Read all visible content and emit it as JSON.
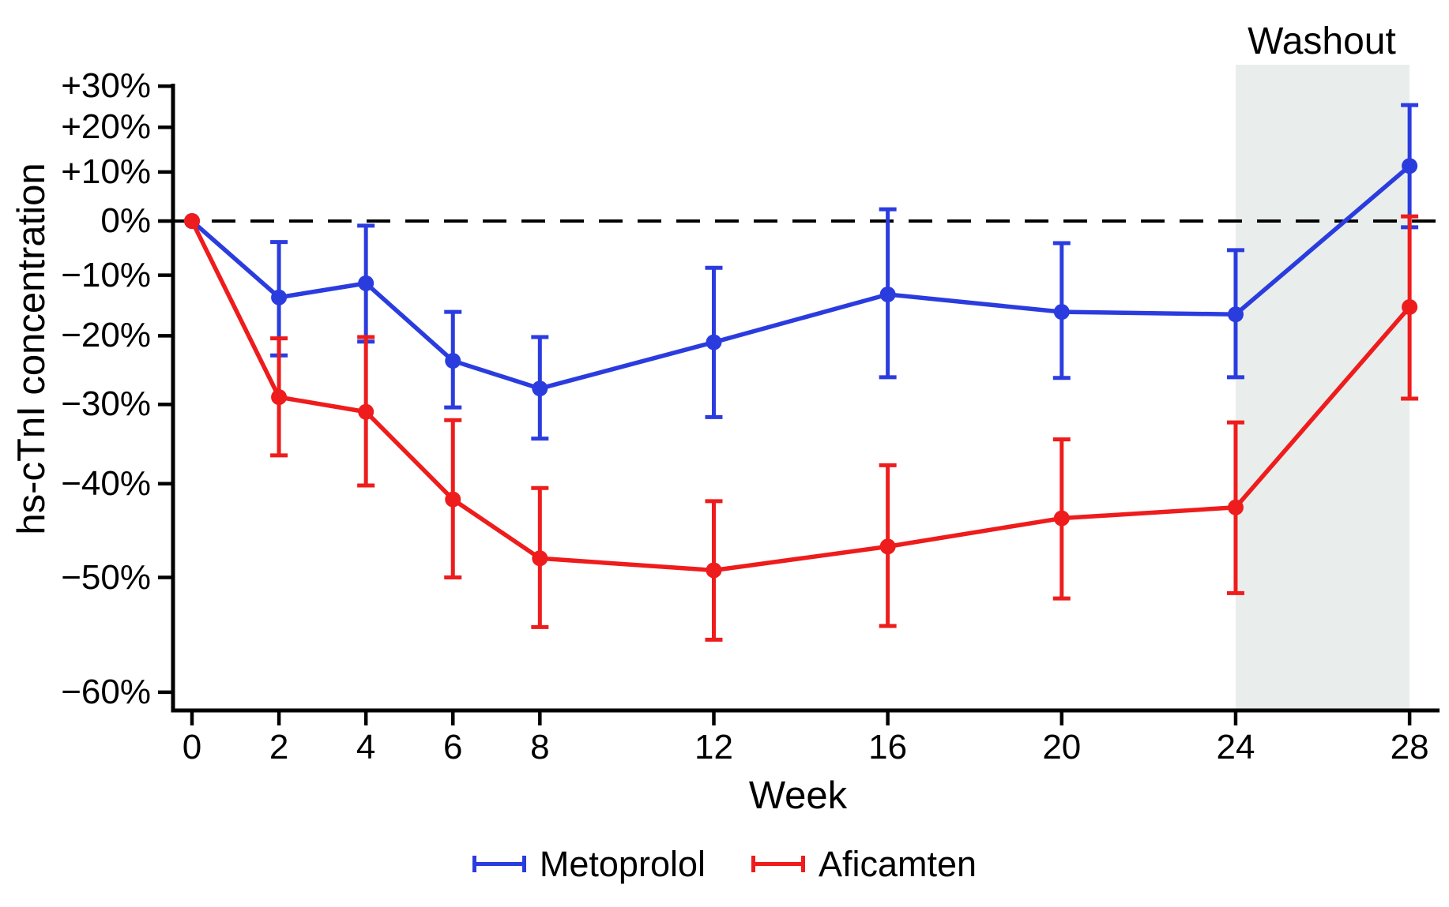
{
  "chart_data": {
    "type": "line",
    "title": "",
    "xlabel": "Week",
    "ylabel": "hs-cTnI concentration",
    "y_scale": "log-ratio: y position proportional to log10(1 + pct/100)",
    "ylim": [
      -60,
      30
    ],
    "xlim": [
      0,
      28
    ],
    "grid": "off",
    "zero_line": {
      "value": 0,
      "style": "dashed",
      "color": "#000000"
    },
    "x_ticks": {
      "values": [
        0,
        2,
        4,
        6,
        8,
        12,
        16,
        20,
        24,
        28
      ],
      "labels": [
        "0",
        "2",
        "4",
        "6",
        "8",
        "12",
        "16",
        "20",
        "24",
        "28"
      ]
    },
    "y_ticks": {
      "values": [
        30,
        20,
        10,
        0,
        -10,
        -20,
        -30,
        -40,
        -50,
        -60
      ],
      "labels": [
        "+30%",
        "+20%",
        "+10%",
        "0%",
        "−10%",
        "−20%",
        "−30%",
        "−40%",
        "−50%",
        "−60%"
      ]
    },
    "washout": {
      "label": "Washout",
      "x_start": 24,
      "x_end": 28,
      "fill": "#e9eeec"
    },
    "weeks": [
      0,
      2,
      4,
      6,
      8,
      12,
      16,
      20,
      24,
      28
    ],
    "series": [
      {
        "name": "Metoprolol",
        "color": "#2b3cdf",
        "values": [
          0,
          -13.8,
          -11.4,
          -23.8,
          -27.8,
          -21.0,
          -13.3,
          -16.2,
          -16.6,
          11.3
        ],
        "ci_high": [
          null,
          -4.0,
          -0.9,
          -16.2,
          -20.2,
          -8.7,
          2.3,
          -4.2,
          -5.5,
          25.3
        ],
        "ci_low": [
          null,
          -23.0,
          -20.9,
          -30.4,
          -34.5,
          -31.7,
          -26.2,
          -26.3,
          -26.2,
          -1.2
        ]
      },
      {
        "name": "Aficamten",
        "color": "#ee1c1c",
        "values": [
          0,
          -29.0,
          -31.0,
          -41.8,
          -48.1,
          -49.3,
          -46.9,
          -43.9,
          -42.7,
          -15.4
        ],
        "ci_high": [
          null,
          -20.4,
          -20.2,
          -32.1,
          -40.5,
          -42.0,
          -37.8,
          -34.6,
          -32.4,
          0.9
        ],
        "ci_low": [
          null,
          -36.6,
          -40.2,
          -50.0,
          -54.6,
          -55.7,
          -54.5,
          -52.0,
          -51.5,
          -29.2
        ]
      }
    ],
    "legend": {
      "position": "bottom",
      "entries": [
        "Metoprolol",
        "Aficamten"
      ]
    }
  }
}
